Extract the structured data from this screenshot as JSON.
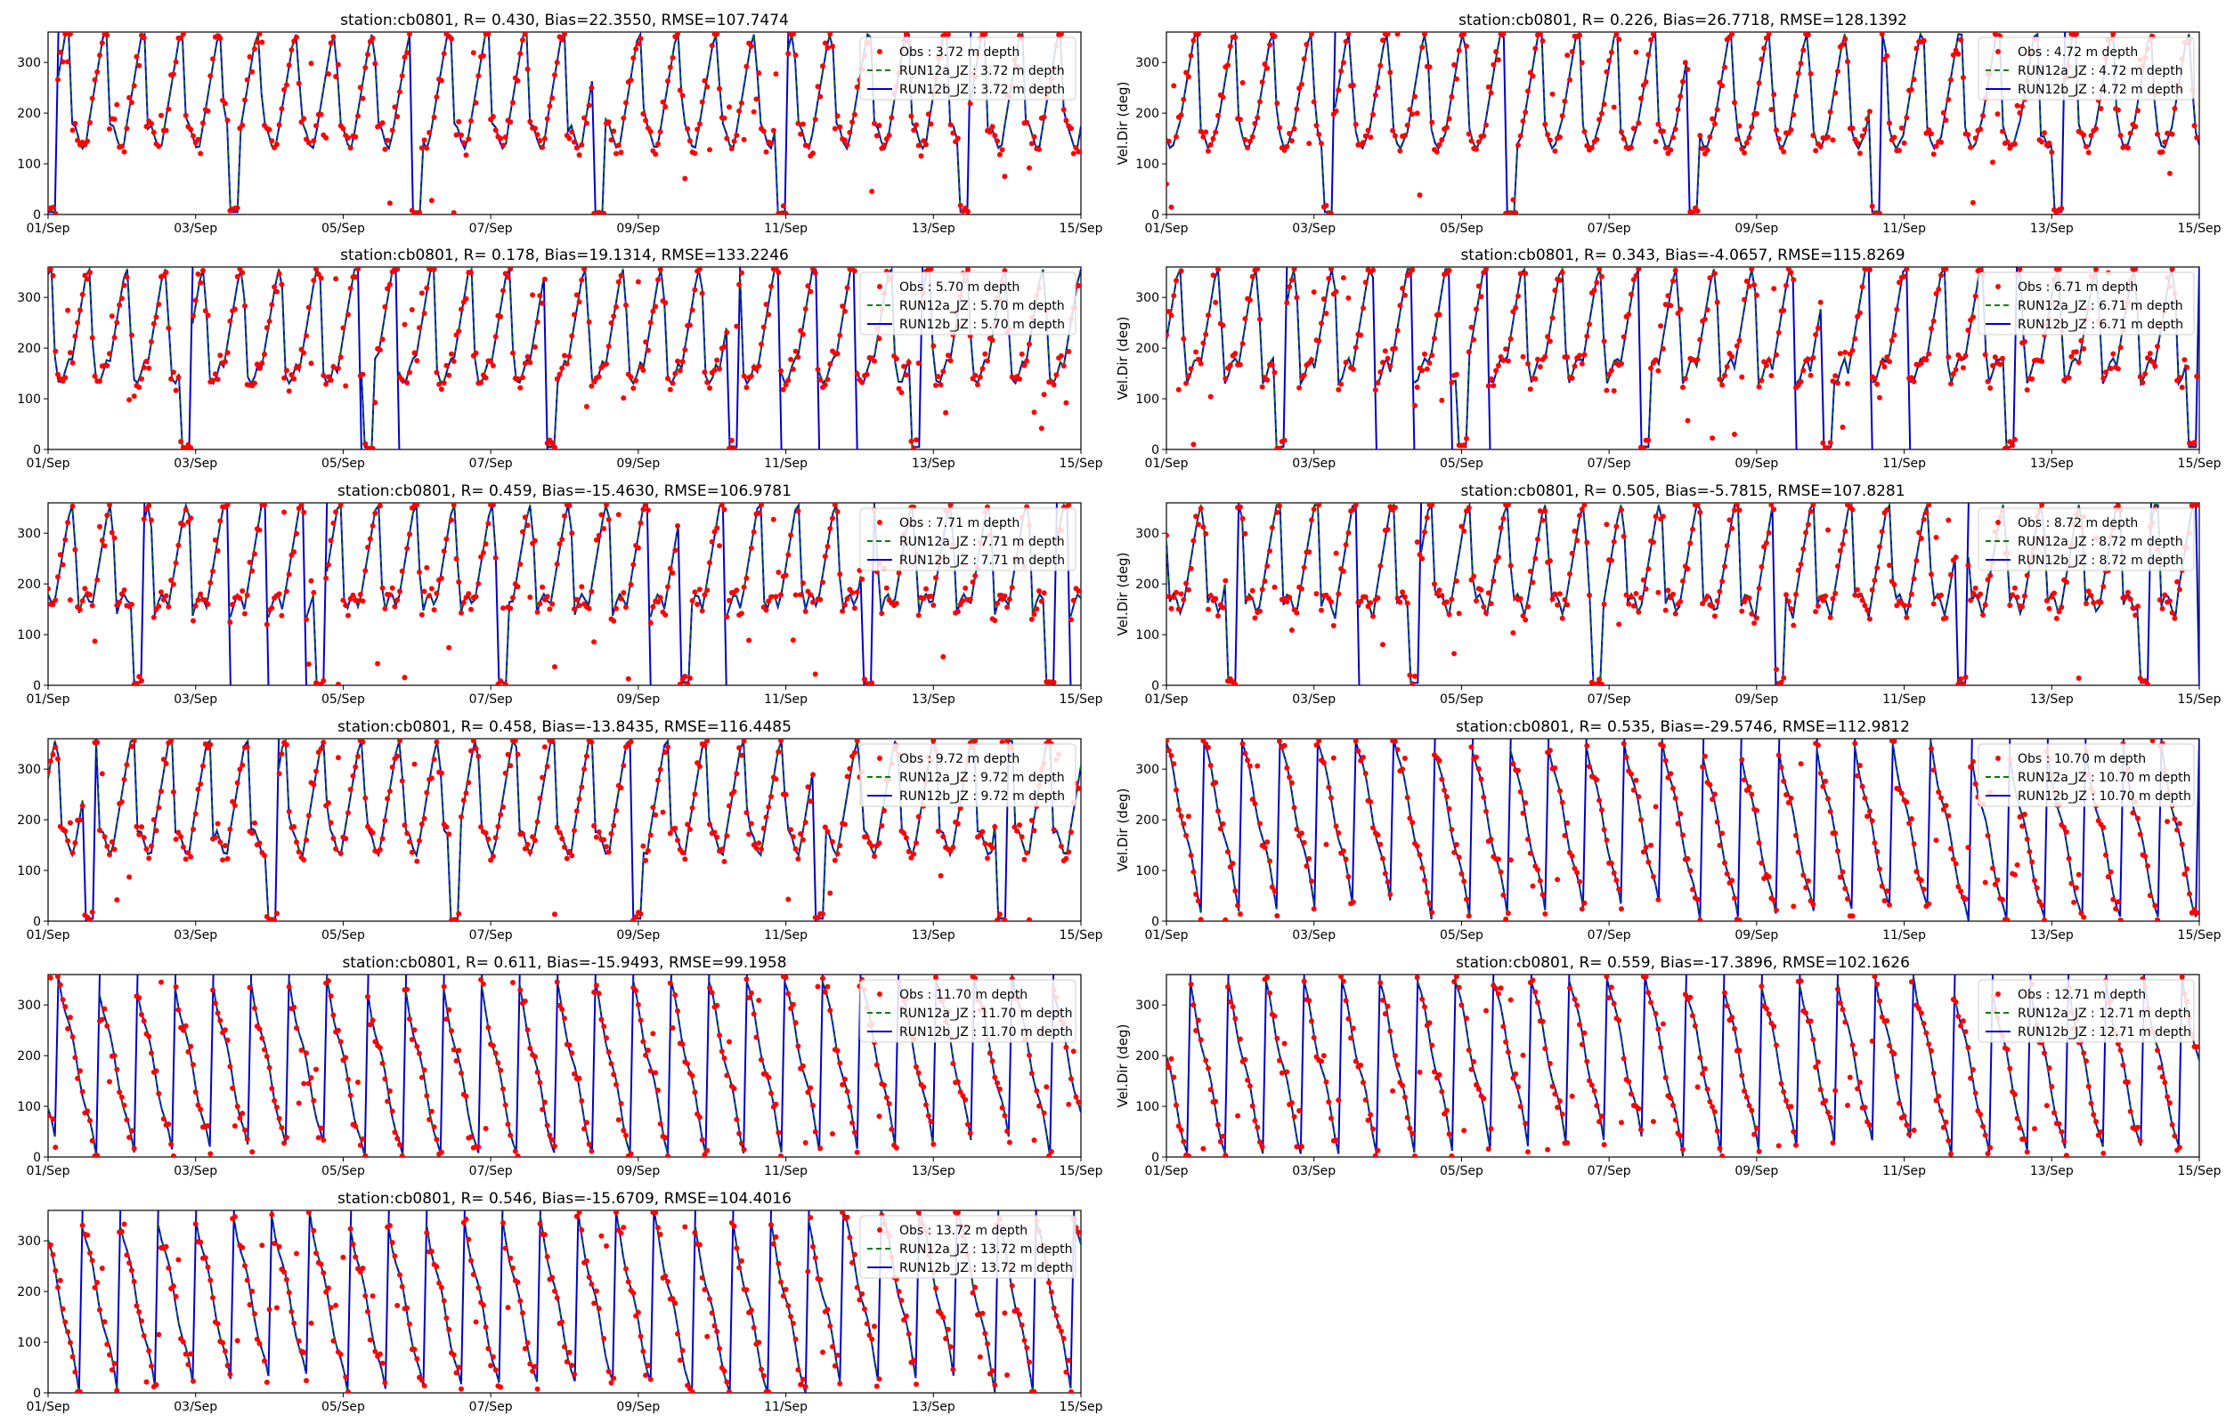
{
  "figure": {
    "background": "#ffffff"
  },
  "styles": {
    "obs_color": "#ff0000",
    "run_a_color": "#008000",
    "run_b_color": "#0000cc",
    "legend_border": "#cccccc"
  },
  "chart_data": [
    {
      "type": "scatter+line",
      "title": "station:cb0801, R= 0.430, Bias=22.3550, RMSE=107.7474",
      "ylabel": "",
      "xlim": [
        "01/Sep",
        "15/Sep"
      ],
      "ylim": [
        0,
        360
      ],
      "xticks": [
        "01/Sep",
        "03/Sep",
        "05/Sep",
        "07/Sep",
        "09/Sep",
        "11/Sep",
        "13/Sep",
        "15/Sep"
      ],
      "yticks": [
        0,
        100,
        200,
        300
      ],
      "legend_loc": "upper right",
      "series": [
        {
          "name": "Obs : 3.72 m depth",
          "kind": "scatter"
        },
        {
          "name": "RUN12a_JZ : 3.72 m depth",
          "kind": "dashed-line"
        },
        {
          "name": "RUN12b_JZ : 3.72 m depth",
          "kind": "line"
        }
      ]
    },
    {
      "type": "scatter+line",
      "title": "station:cb0801, R= 0.226, Bias=26.7718, RMSE=128.1392",
      "ylabel": "Vel.Dir (deg)",
      "xlim": [
        "01/Sep",
        "15/Sep"
      ],
      "ylim": [
        0,
        360
      ],
      "xticks": [
        "01/Sep",
        "03/Sep",
        "05/Sep",
        "07/Sep",
        "09/Sep",
        "11/Sep",
        "13/Sep",
        "15/Sep"
      ],
      "yticks": [
        0,
        100,
        200,
        300
      ],
      "legend_loc": "upper right",
      "series": [
        {
          "name": "Obs : 4.72 m depth",
          "kind": "scatter"
        },
        {
          "name": "RUN12a_JZ : 4.72 m depth",
          "kind": "dashed-line"
        },
        {
          "name": "RUN12b_JZ : 4.72 m depth",
          "kind": "line"
        }
      ]
    },
    {
      "type": "scatter+line",
      "title": "station:cb0801, R= 0.178, Bias=19.1314, RMSE=133.2246",
      "ylabel": "",
      "xlim": [
        "01/Sep",
        "15/Sep"
      ],
      "ylim": [
        0,
        360
      ],
      "xticks": [
        "01/Sep",
        "03/Sep",
        "05/Sep",
        "07/Sep",
        "09/Sep",
        "11/Sep",
        "13/Sep",
        "15/Sep"
      ],
      "yticks": [
        0,
        100,
        200,
        300
      ],
      "legend_loc": "upper right",
      "series": [
        {
          "name": "Obs : 5.70 m depth",
          "kind": "scatter"
        },
        {
          "name": "RUN12a_JZ : 5.70 m depth",
          "kind": "dashed-line"
        },
        {
          "name": "RUN12b_JZ : 5.70 m depth",
          "kind": "line"
        }
      ]
    },
    {
      "type": "scatter+line",
      "title": "station:cb0801, R= 0.343, Bias=-4.0657, RMSE=115.8269",
      "ylabel": "Vel.Dir (deg)",
      "xlim": [
        "01/Sep",
        "15/Sep"
      ],
      "ylim": [
        0,
        360
      ],
      "xticks": [
        "01/Sep",
        "03/Sep",
        "05/Sep",
        "07/Sep",
        "09/Sep",
        "11/Sep",
        "13/Sep",
        "15/Sep"
      ],
      "yticks": [
        0,
        100,
        200,
        300
      ],
      "legend_loc": "upper right",
      "series": [
        {
          "name": "Obs : 6.71 m depth",
          "kind": "scatter"
        },
        {
          "name": "RUN12a_JZ : 6.71 m depth",
          "kind": "dashed-line"
        },
        {
          "name": "RUN12b_JZ : 6.71 m depth",
          "kind": "line"
        }
      ]
    },
    {
      "type": "scatter+line",
      "title": "station:cb0801, R= 0.459, Bias=-15.4630, RMSE=106.9781",
      "ylabel": "",
      "xlim": [
        "01/Sep",
        "15/Sep"
      ],
      "ylim": [
        0,
        360
      ],
      "xticks": [
        "01/Sep",
        "03/Sep",
        "05/Sep",
        "07/Sep",
        "09/Sep",
        "11/Sep",
        "13/Sep",
        "15/Sep"
      ],
      "yticks": [
        0,
        100,
        200,
        300
      ],
      "legend_loc": "upper right",
      "series": [
        {
          "name": "Obs : 7.71 m depth",
          "kind": "scatter"
        },
        {
          "name": "RUN12a_JZ : 7.71 m depth",
          "kind": "dashed-line"
        },
        {
          "name": "RUN12b_JZ : 7.71 m depth",
          "kind": "line"
        }
      ]
    },
    {
      "type": "scatter+line",
      "title": "station:cb0801, R= 0.505, Bias=-5.7815, RMSE=107.8281",
      "ylabel": "Vel.Dir (deg)",
      "xlim": [
        "01/Sep",
        "15/Sep"
      ],
      "ylim": [
        0,
        360
      ],
      "xticks": [
        "01/Sep",
        "03/Sep",
        "05/Sep",
        "07/Sep",
        "09/Sep",
        "11/Sep",
        "13/Sep",
        "15/Sep"
      ],
      "yticks": [
        0,
        100,
        200,
        300
      ],
      "legend_loc": "upper right",
      "series": [
        {
          "name": "Obs : 8.72 m depth",
          "kind": "scatter"
        },
        {
          "name": "RUN12a_JZ : 8.72 m depth",
          "kind": "dashed-line"
        },
        {
          "name": "RUN12b_JZ : 8.72 m depth",
          "kind": "line"
        }
      ]
    },
    {
      "type": "scatter+line",
      "title": "station:cb0801, R= 0.458, Bias=-13.8435, RMSE=116.4485",
      "ylabel": "",
      "xlim": [
        "01/Sep",
        "15/Sep"
      ],
      "ylim": [
        0,
        360
      ],
      "xticks": [
        "01/Sep",
        "03/Sep",
        "05/Sep",
        "07/Sep",
        "09/Sep",
        "11/Sep",
        "13/Sep",
        "15/Sep"
      ],
      "yticks": [
        0,
        100,
        200,
        300
      ],
      "legend_loc": "upper right",
      "series": [
        {
          "name": "Obs : 9.72 m depth",
          "kind": "scatter"
        },
        {
          "name": "RUN12a_JZ : 9.72 m depth",
          "kind": "dashed-line"
        },
        {
          "name": "RUN12b_JZ : 9.72 m depth",
          "kind": "line"
        }
      ]
    },
    {
      "type": "scatter+line",
      "title": "station:cb0801, R= 0.535, Bias=-29.5746, RMSE=112.9812",
      "ylabel": "Vel.Dir (deg)",
      "xlim": [
        "01/Sep",
        "15/Sep"
      ],
      "ylim": [
        0,
        360
      ],
      "xticks": [
        "01/Sep",
        "03/Sep",
        "05/Sep",
        "07/Sep",
        "09/Sep",
        "11/Sep",
        "13/Sep",
        "15/Sep"
      ],
      "yticks": [
        0,
        100,
        200,
        300
      ],
      "legend_loc": "upper right",
      "series": [
        {
          "name": "Obs : 10.70 m depth",
          "kind": "scatter"
        },
        {
          "name": "RUN12a_JZ : 10.70 m depth",
          "kind": "dashed-line"
        },
        {
          "name": "RUN12b_JZ : 10.70 m depth",
          "kind": "line"
        }
      ]
    },
    {
      "type": "scatter+line",
      "title": "station:cb0801, R= 0.611, Bias=-15.9493, RMSE=99.1958",
      "ylabel": "",
      "xlim": [
        "01/Sep",
        "15/Sep"
      ],
      "ylim": [
        0,
        360
      ],
      "xticks": [
        "01/Sep",
        "03/Sep",
        "05/Sep",
        "07/Sep",
        "09/Sep",
        "11/Sep",
        "13/Sep",
        "15/Sep"
      ],
      "yticks": [
        0,
        100,
        200,
        300
      ],
      "legend_loc": "upper right",
      "series": [
        {
          "name": "Obs : 11.70 m depth",
          "kind": "scatter"
        },
        {
          "name": "RUN12a_JZ : 11.70 m depth",
          "kind": "dashed-line"
        },
        {
          "name": "RUN12b_JZ : 11.70 m depth",
          "kind": "line"
        }
      ]
    },
    {
      "type": "scatter+line",
      "title": "station:cb0801, R= 0.559, Bias=-17.3896, RMSE=102.1626",
      "ylabel": "Vel.Dir (deg)",
      "xlim": [
        "01/Sep",
        "15/Sep"
      ],
      "ylim": [
        0,
        360
      ],
      "xticks": [
        "01/Sep",
        "03/Sep",
        "05/Sep",
        "07/Sep",
        "09/Sep",
        "11/Sep",
        "13/Sep",
        "15/Sep"
      ],
      "yticks": [
        0,
        100,
        200,
        300
      ],
      "legend_loc": "upper right",
      "series": [
        {
          "name": "Obs : 12.71 m depth",
          "kind": "scatter"
        },
        {
          "name": "RUN12a_JZ : 12.71 m depth",
          "kind": "dashed-line"
        },
        {
          "name": "RUN12b_JZ : 12.71 m depth",
          "kind": "line"
        }
      ]
    },
    {
      "type": "scatter+line",
      "title": "station:cb0801, R= 0.546, Bias=-15.6709, RMSE=104.4016",
      "ylabel": "",
      "xlim": [
        "01/Sep",
        "15/Sep"
      ],
      "ylim": [
        0,
        360
      ],
      "xticks": [
        "01/Sep",
        "03/Sep",
        "05/Sep",
        "07/Sep",
        "09/Sep",
        "11/Sep",
        "13/Sep",
        "15/Sep"
      ],
      "yticks": [
        0,
        100,
        200,
        300
      ],
      "legend_loc": "upper right",
      "series": [
        {
          "name": "Obs : 13.72 m depth",
          "kind": "scatter"
        },
        {
          "name": "RUN12a_JZ : 13.72 m depth",
          "kind": "dashed-line"
        },
        {
          "name": "RUN12b_JZ : 13.72 m depth",
          "kind": "line"
        }
      ]
    }
  ]
}
